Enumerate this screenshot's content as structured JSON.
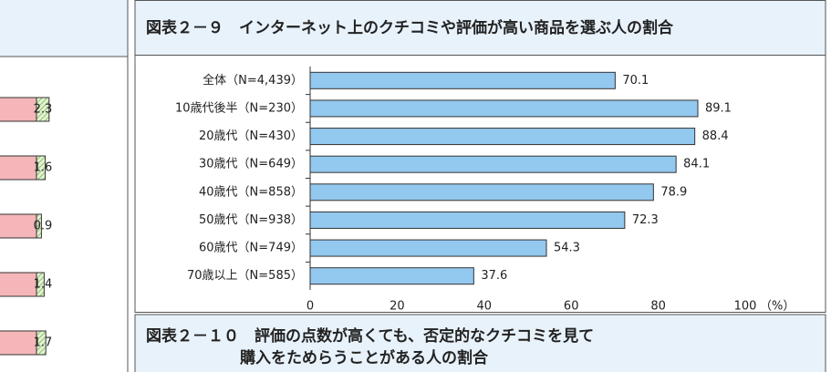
{
  "chart_data": {
    "type": "hbar",
    "title": "図表２－９　インターネット上のクチコミや評価が高い商品を選ぶ人の割合",
    "categories": [
      "全体（N=4,439）",
      "10歳代後半（N=230）",
      "20歳代（N=430）",
      "30歳代（N=649）",
      "40歳代（N=858）",
      "50歳代（N=938）",
      "60歳代（N=749）",
      "70歳以上（N=585）"
    ],
    "values": [
      70.1,
      89.1,
      88.4,
      84.1,
      78.9,
      72.3,
      54.3,
      37.6
    ],
    "color": "#93c8ef",
    "xlim": [
      0,
      100
    ],
    "xticks": [
      0,
      20,
      40,
      60,
      80,
      100
    ],
    "x_unit": "（%）"
  },
  "left_panel": {
    "values": [
      2.3,
      1.6,
      0.9,
      1.4,
      1.7
    ]
  },
  "next_figure": {
    "title_lines": [
      "図表２－１０　評価の点数が高くても、否定的なクチコミを見て",
      "購入をためらうことがある人の割合"
    ]
  }
}
